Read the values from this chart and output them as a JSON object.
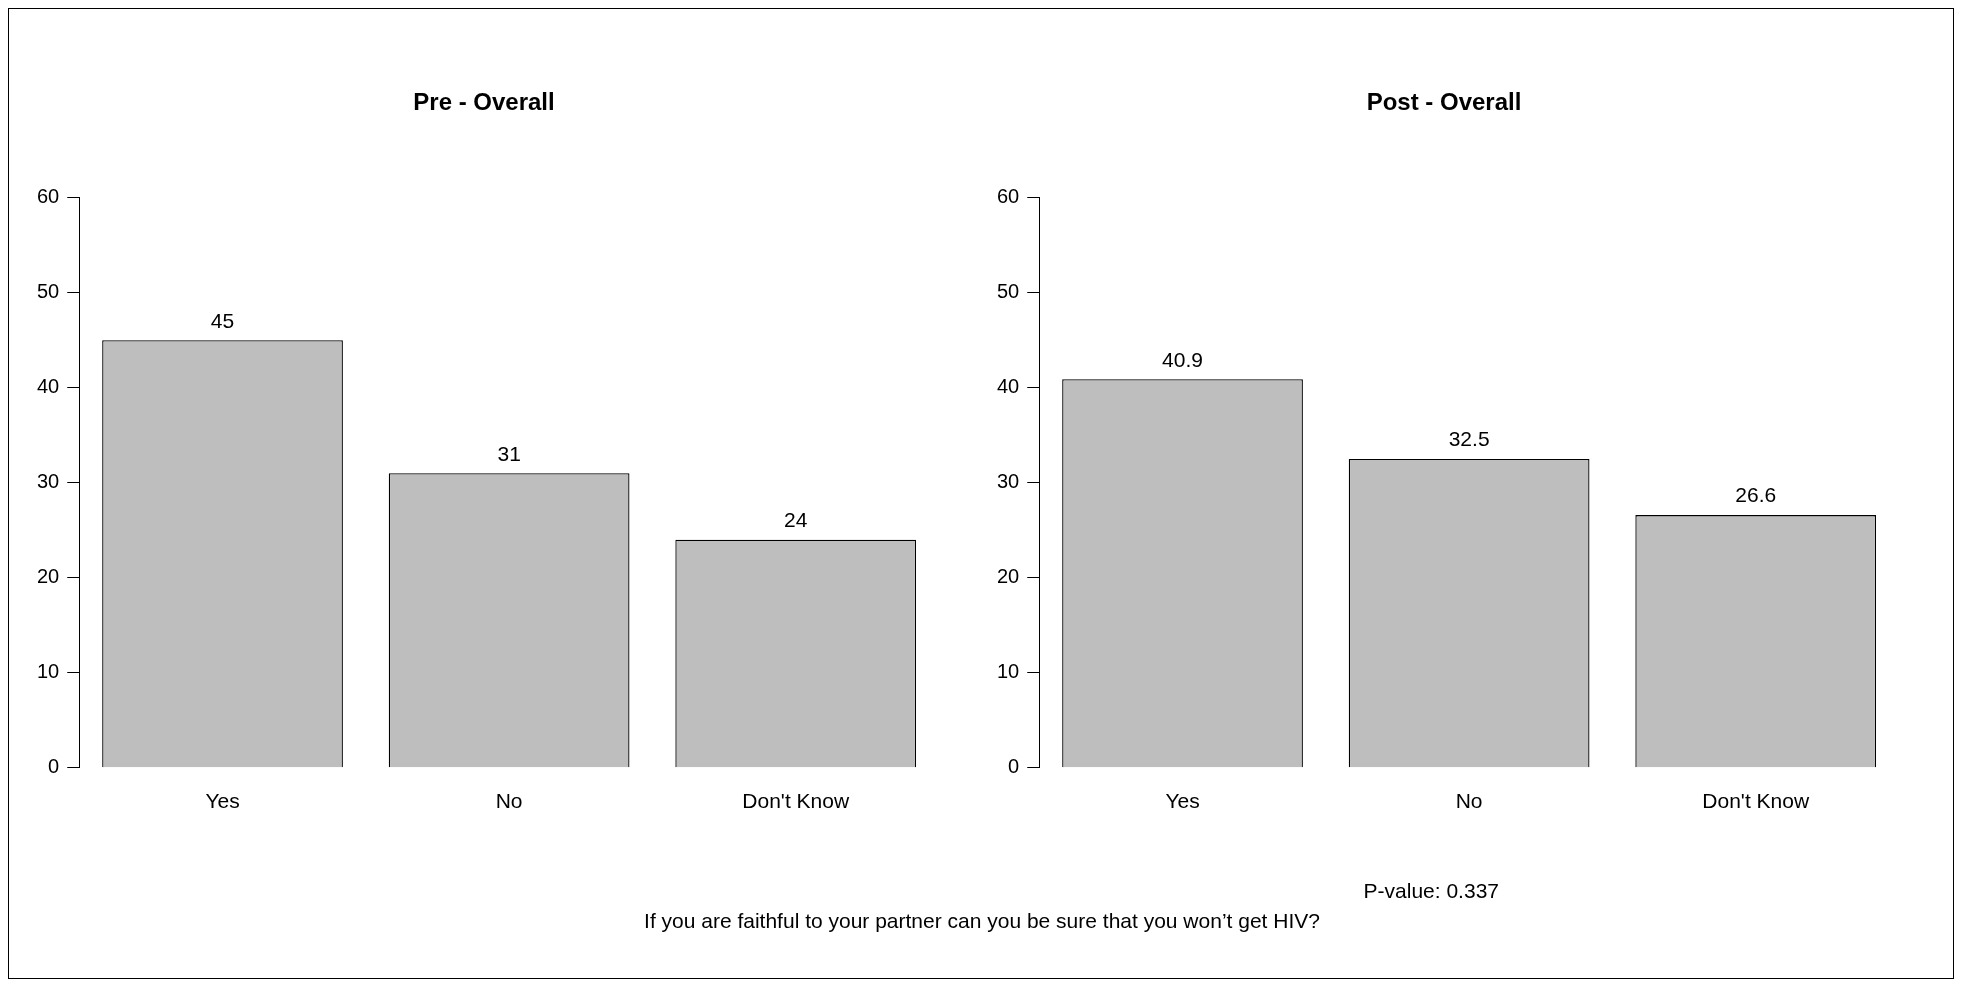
{
  "chart_data": [
    {
      "type": "bar",
      "title": "Pre - Overall",
      "categories": [
        "Yes",
        "No",
        "Don't Know"
      ],
      "values": [
        45,
        31,
        24
      ],
      "color": "#bebebe",
      "ylim": [
        0,
        60
      ],
      "yticks": [
        0,
        10,
        20,
        30,
        40,
        50,
        60
      ],
      "data_labels": true,
      "grid": false,
      "legend": false
    },
    {
      "type": "bar",
      "title": "Post - Overall",
      "categories": [
        "Yes",
        "No",
        "Don't Know"
      ],
      "values": [
        40.9,
        32.5,
        26.6
      ],
      "color": "#bebebe",
      "ylim": [
        0,
        60
      ],
      "yticks": [
        0,
        10,
        20,
        30,
        40,
        50,
        60
      ],
      "data_labels": true,
      "grid": false,
      "legend": false,
      "annotations": [
        "P-value: 0.337",
        "If you are faithful to your partner can you be sure that you won’t get HIV?"
      ]
    }
  ]
}
